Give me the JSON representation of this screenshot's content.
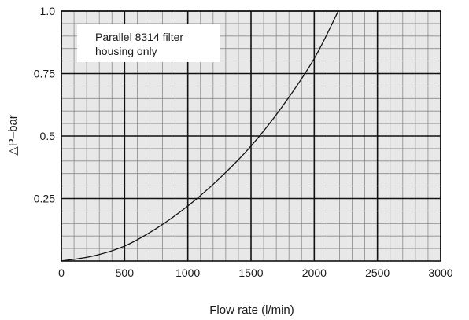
{
  "chart_data": {
    "type": "line",
    "title": "",
    "xlabel": "Flow rate (l/min)",
    "ylabel": "△P–bar",
    "xlim": [
      0,
      3000
    ],
    "ylim": [
      0,
      1.0
    ],
    "x_ticks": [
      0,
      500,
      1000,
      1500,
      2000,
      2500,
      3000
    ],
    "x_tick_labels": [
      "0",
      "500",
      "1000",
      "1500",
      "2000",
      "2500",
      "3000"
    ],
    "y_ticks": [
      0.25,
      0.5,
      0.75,
      1.0
    ],
    "y_tick_labels": [
      "0.25",
      "0.5",
      "0.75",
      "1.0"
    ],
    "grid": true,
    "minor_divisions_x": 5,
    "minor_divisions_y": 5,
    "annotation": [
      "Parallel 8314 filter",
      "housing only"
    ],
    "series": [
      {
        "x": [
          0,
          250,
          500,
          750,
          1000,
          1250,
          1500,
          1750,
          2000,
          2190
        ],
        "y": [
          0.0,
          0.02,
          0.06,
          0.13,
          0.22,
          0.33,
          0.46,
          0.62,
          0.81,
          1.0
        ]
      }
    ],
    "colors": {
      "grid_bg": "#e8e8e8",
      "minor_grid": "#8a8a8a",
      "major_grid": "#111111",
      "line": "#111111"
    }
  }
}
